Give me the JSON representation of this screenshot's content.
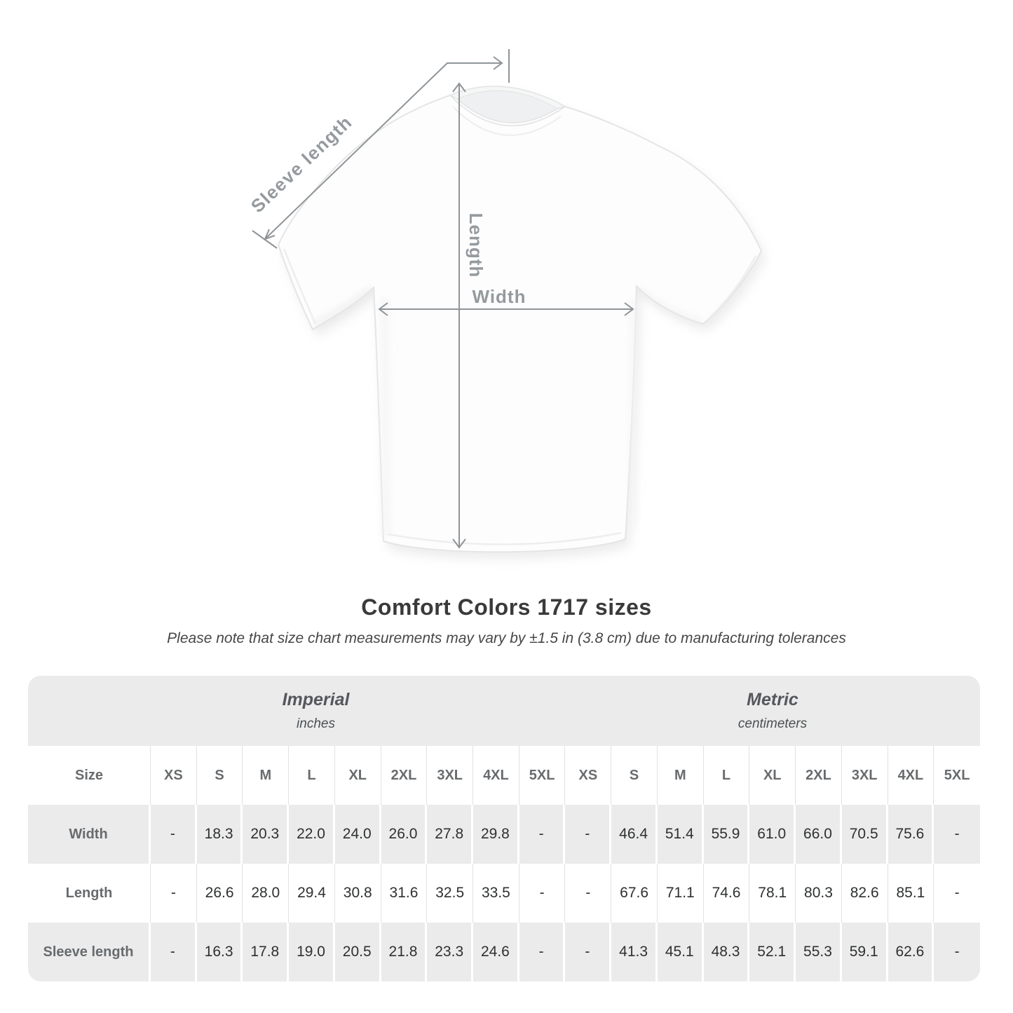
{
  "chart_data": {
    "type": "table",
    "title": "Comfort Colors 1717 sizes",
    "note": "Please note that size chart measurements may vary by ±1.5 in (3.8 cm) due to manufacturing tolerances",
    "diagram_labels": {
      "sleeve_length": "Sleeve length",
      "length": "Length",
      "width": "Width"
    },
    "unit_groups": [
      {
        "label": "Imperial",
        "sublabel": "inches"
      },
      {
        "label": "Metric",
        "sublabel": "centimeters"
      }
    ],
    "size_header": "Size",
    "sizes": [
      "XS",
      "S",
      "M",
      "L",
      "XL",
      "2XL",
      "3XL",
      "4XL",
      "5XL"
    ],
    "rows": [
      {
        "label": "Width",
        "imperial": [
          "-",
          "18.3",
          "20.3",
          "22.0",
          "24.0",
          "26.0",
          "27.8",
          "29.8",
          "-"
        ],
        "metric": [
          "-",
          "46.4",
          "51.4",
          "55.9",
          "61.0",
          "66.0",
          "70.5",
          "75.6",
          "-"
        ]
      },
      {
        "label": "Length",
        "imperial": [
          "-",
          "26.6",
          "28.0",
          "29.4",
          "30.8",
          "31.6",
          "32.5",
          "33.5",
          "-"
        ],
        "metric": [
          "-",
          "67.6",
          "71.1",
          "74.6",
          "78.1",
          "80.3",
          "82.6",
          "85.1",
          "-"
        ]
      },
      {
        "label": "Sleeve length",
        "imperial": [
          "-",
          "16.3",
          "17.8",
          "19.0",
          "20.5",
          "21.8",
          "23.3",
          "24.6",
          "-"
        ],
        "metric": [
          "-",
          "41.3",
          "45.1",
          "48.3",
          "52.1",
          "55.3",
          "59.1",
          "62.6",
          "-"
        ]
      }
    ]
  },
  "colors": {
    "measure_line": "#8f9498",
    "diagram_label": "#949a9e",
    "table_gray": "#ebebeb",
    "header_text": "#686b6e",
    "value_text": "#2e3031",
    "title_text": "#3a3a3a"
  }
}
